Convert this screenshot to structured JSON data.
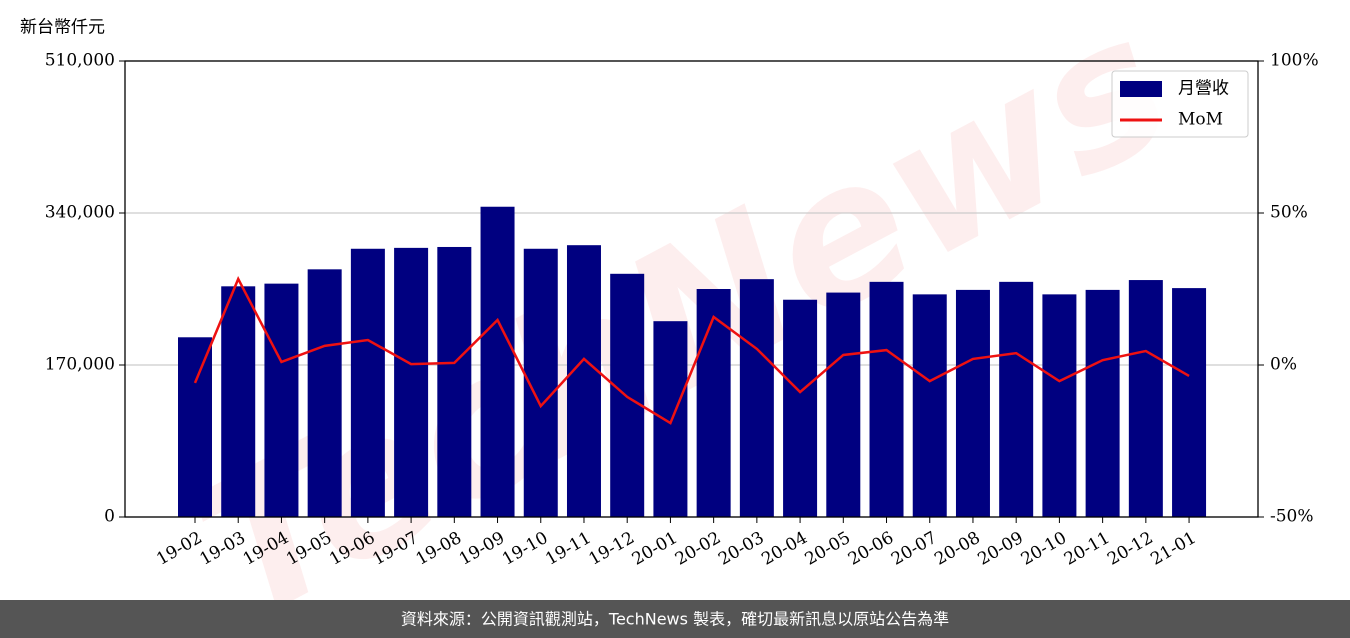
{
  "chart_data": {
    "type": "bar",
    "y_label": "新台幣仟元",
    "watermark": "TechNews",
    "footer": "資料來源：公開資訊觀測站，TechNews 製表，確切最新訊息以原站公告為準",
    "categories": [
      "19-02",
      "19-03",
      "19-04",
      "19-05",
      "19-06",
      "19-07",
      "19-08",
      "19-09",
      "19-10",
      "19-11",
      "19-12",
      "20-01",
      "20-02",
      "20-03",
      "20-04",
      "20-05",
      "20-06",
      "20-07",
      "20-08",
      "20-09",
      "20-10",
      "20-11",
      "20-12",
      "21-01"
    ],
    "series": [
      {
        "name": "月營收",
        "type": "bar",
        "color": "#000080",
        "values": [
          201000,
          258000,
          261000,
          277000,
          300000,
          301000,
          302000,
          347000,
          300000,
          304000,
          272000,
          219000,
          255000,
          266000,
          243000,
          251000,
          263000,
          249000,
          254000,
          263000,
          249000,
          254000,
          265000,
          256000
        ]
      },
      {
        "name": "MoM",
        "type": "line",
        "axis": "y2",
        "color": "#ee1111",
        "values": [
          -5.9,
          28.3,
          1.0,
          6.3,
          8.2,
          0.3,
          0.7,
          14.8,
          -13.5,
          2.0,
          -10.5,
          -19.1,
          15.8,
          5.3,
          -8.9,
          3.3,
          4.9,
          -5.3,
          2.0,
          3.9,
          -5.3,
          1.6,
          4.6,
          -3.6
        ]
      }
    ],
    "ylim": [
      0,
      510000
    ],
    "yticks": [
      0,
      {
        "value": 170000,
        "label": "170,000"
      },
      {
        "value": 340000,
        "label": "340,000"
      },
      {
        "value": 510000,
        "label": "510,000"
      }
    ],
    "y2lim": [
      -50,
      100
    ],
    "y2ticks": [
      {
        "value": -50,
        "label": "-50%"
      },
      {
        "value": 0,
        "label": "0%"
      },
      {
        "value": 50,
        "label": "50%"
      },
      {
        "value": 100,
        "label": "100%"
      }
    ],
    "grid": true,
    "legend": "upper right"
  }
}
